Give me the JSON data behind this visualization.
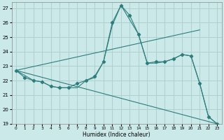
{
  "title": "",
  "xlabel": "Humidex (Indice chaleur)",
  "xlim": [
    -0.5,
    23.5
  ],
  "ylim": [
    19,
    27.4
  ],
  "yticks": [
    19,
    20,
    21,
    22,
    23,
    24,
    25,
    26,
    27
  ],
  "xticks": [
    0,
    1,
    2,
    3,
    4,
    5,
    6,
    7,
    8,
    9,
    10,
    11,
    12,
    13,
    14,
    15,
    16,
    17,
    18,
    19,
    20,
    21,
    22,
    23
  ],
  "bg_color": "#cce9e9",
  "grid_color": "#b0d0d0",
  "line_color": "#2e7d7d",
  "series_main": {
    "x": [
      0,
      1,
      2,
      3,
      4,
      5,
      6,
      7,
      8,
      9,
      10,
      11,
      12,
      13,
      14,
      15,
      16,
      17,
      18,
      19,
      20,
      21,
      22,
      23
    ],
    "y": [
      22.7,
      22.2,
      22.0,
      21.9,
      21.6,
      21.5,
      21.5,
      21.8,
      22.0,
      22.3,
      23.3,
      26.0,
      27.2,
      26.5,
      25.2,
      23.2,
      23.3,
      23.3,
      23.5,
      23.8,
      23.7,
      21.8,
      19.5,
      19.0
    ]
  },
  "series_smooth": {
    "x": [
      0,
      2,
      3,
      4,
      5,
      6,
      7,
      8,
      9,
      10,
      11,
      12,
      14,
      15,
      16,
      17,
      18,
      19,
      20,
      21,
      22,
      23
    ],
    "y": [
      22.7,
      22.0,
      21.9,
      21.6,
      21.5,
      21.5,
      21.5,
      22.0,
      22.2,
      23.3,
      25.8,
      27.2,
      25.2,
      23.2,
      23.2,
      23.3,
      23.5,
      23.8,
      23.7,
      21.8,
      19.5,
      19.0
    ]
  },
  "line_upper": {
    "x": [
      0,
      21
    ],
    "y": [
      22.7,
      25.5
    ]
  },
  "line_lower": {
    "x": [
      0,
      23
    ],
    "y": [
      22.7,
      19.0
    ]
  }
}
